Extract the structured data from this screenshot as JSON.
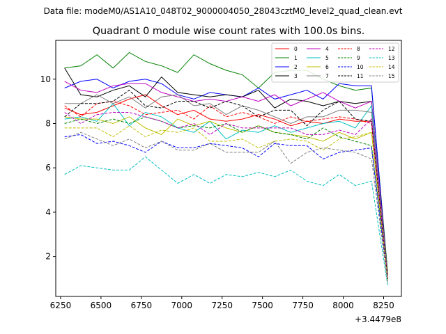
{
  "figure": {
    "suptitle": "Data file: modeM0/AS1A10_048T02_9000004050_28043cztM0_level2_quad_clean.evt",
    "title": "Quadrant 0 module wise count rates with 100.0s bins."
  },
  "chart_data": {
    "type": "line",
    "title": "Quadrant 0 module wise count rates with 100.0s bins.",
    "xlabel": "",
    "ylabel": "",
    "x_offset_label": "+3.4479e8",
    "xlim": [
      6220,
      8360
    ],
    "ylim": [
      0.2,
      11.75
    ],
    "x_ticks": [
      6250,
      6500,
      6750,
      7000,
      7250,
      7500,
      7750,
      8000,
      8250
    ],
    "y_ticks": [
      2,
      4,
      6,
      8,
      10
    ],
    "grid": false,
    "legend_placement": "top-right",
    "legend_columns": 4,
    "x": [
      6275,
      6375,
      6475,
      6575,
      6675,
      6775,
      6875,
      6975,
      7075,
      7175,
      7275,
      7375,
      7475,
      7575,
      7675,
      7775,
      7875,
      7975,
      8075,
      8175,
      8275
    ],
    "series": [
      {
        "name": "0",
        "color": "#ff0000",
        "dash": "solid",
        "values": [
          8.7,
          8.4,
          8.5,
          8.8,
          9.1,
          9.3,
          8.8,
          8.4,
          8.6,
          8.2,
          8.1,
          8.2,
          8.4,
          8.2,
          7.9,
          8.1,
          8.0,
          8.2,
          8.1,
          8.1,
          1.2
        ]
      },
      {
        "name": "1",
        "color": "#008000",
        "dash": "solid",
        "values": [
          10.5,
          10.6,
          11.1,
          10.5,
          11.2,
          10.8,
          10.6,
          10.3,
          11.1,
          10.7,
          10.4,
          10.2,
          9.6,
          10.3,
          10.4,
          10.4,
          10.0,
          9.7,
          9.5,
          9.6,
          1.3
        ]
      },
      {
        "name": "2",
        "color": "#0000ff",
        "dash": "solid",
        "values": [
          9.6,
          9.9,
          10.0,
          9.6,
          9.9,
          10.0,
          9.8,
          9.3,
          9.1,
          9.4,
          9.3,
          9.2,
          9.6,
          9.1,
          9.3,
          9.5,
          9.1,
          9.8,
          9.7,
          9.7,
          1.1
        ]
      },
      {
        "name": "3",
        "color": "#000000",
        "dash": "solid",
        "values": [
          10.5,
          9.3,
          9.2,
          9.5,
          9.7,
          9.2,
          10.1,
          9.4,
          9.3,
          9.2,
          9.3,
          9.2,
          9.5,
          8.7,
          9.1,
          9.0,
          8.8,
          9.0,
          8.9,
          9.0,
          1.2
        ]
      },
      {
        "name": "4",
        "color": "#bf00bf",
        "dash": "solid",
        "values": [
          9.9,
          9.5,
          9.4,
          9.7,
          9.8,
          9.8,
          9.4,
          9.2,
          9.0,
          9.1,
          9.0,
          9.2,
          9.0,
          9.3,
          8.8,
          9.1,
          9.4,
          9.0,
          8.7,
          9.0,
          1.1
        ]
      },
      {
        "name": "5",
        "color": "#00bfbf",
        "dash": "solid",
        "values": [
          8.2,
          8.3,
          8.1,
          8.9,
          7.9,
          8.5,
          8.3,
          7.8,
          7.6,
          8.1,
          7.3,
          7.7,
          7.6,
          7.9,
          7.6,
          7.8,
          8.0,
          8.1,
          7.8,
          8.8,
          0.9
        ]
      },
      {
        "name": "6",
        "color": "#bfbf00",
        "dash": "solid",
        "values": [
          8.3,
          8.2,
          8.2,
          8.0,
          8.3,
          7.8,
          7.5,
          8.2,
          7.9,
          8.1,
          7.8,
          7.6,
          7.9,
          7.6,
          7.5,
          7.4,
          7.2,
          7.6,
          7.3,
          7.6,
          1.0
        ]
      },
      {
        "name": "7",
        "color": "#808080",
        "dash": "solid",
        "values": [
          8.9,
          8.9,
          9.3,
          8.9,
          9.2,
          8.7,
          9.2,
          9.3,
          8.8,
          8.9,
          8.4,
          8.8,
          8.6,
          8.3,
          8.0,
          8.3,
          8.3,
          8.6,
          8.6,
          8.5,
          1.2
        ]
      },
      {
        "name": "8",
        "color": "#ff0000",
        "dash": "dashed",
        "values": [
          8.8,
          8.3,
          8.9,
          9.0,
          8.8,
          8.4,
          8.5,
          8.6,
          8.2,
          8.8,
          8.3,
          8.5,
          8.3,
          8.0,
          8.3,
          8.1,
          8.2,
          8.3,
          8.2,
          8.0,
          1.0
        ]
      },
      {
        "name": "9",
        "color": "#008000",
        "dash": "dashed",
        "values": [
          8.0,
          8.2,
          8.0,
          8.2,
          8.0,
          8.3,
          8.1,
          7.8,
          7.9,
          7.8,
          8.0,
          7.6,
          7.9,
          7.6,
          7.5,
          7.3,
          7.8,
          7.4,
          7.2,
          7.0,
          1.0
        ]
      },
      {
        "name": "10",
        "color": "#0000ff",
        "dash": "dashed",
        "values": [
          7.4,
          7.5,
          7.1,
          7.2,
          7.0,
          6.7,
          7.2,
          6.9,
          6.9,
          7.1,
          7.0,
          6.9,
          6.5,
          7.1,
          7.0,
          7.0,
          6.4,
          6.7,
          6.8,
          6.9,
          0.9
        ]
      },
      {
        "name": "11",
        "color": "#000000",
        "dash": "dashed",
        "values": [
          8.3,
          8.9,
          8.9,
          9.0,
          9.5,
          8.8,
          8.7,
          9.0,
          9.0,
          8.7,
          9.0,
          8.8,
          8.3,
          8.6,
          8.6,
          7.9,
          8.6,
          9.0,
          8.2,
          8.1,
          1.0
        ]
      },
      {
        "name": "12",
        "color": "#bf00bf",
        "dash": "dashed",
        "values": [
          8.5,
          8.0,
          8.4,
          8.5,
          8.5,
          8.3,
          8.1,
          7.8,
          8.0,
          7.5,
          8.0,
          7.8,
          7.8,
          7.8,
          7.8,
          7.5,
          7.5,
          7.7,
          7.5,
          8.2,
          1.0
        ]
      },
      {
        "name": "13",
        "color": "#00bfbf",
        "dash": "dashed",
        "values": [
          5.7,
          6.1,
          6.0,
          5.9,
          5.9,
          6.5,
          5.9,
          5.3,
          5.7,
          5.3,
          5.7,
          5.6,
          5.8,
          5.6,
          5.9,
          5.4,
          5.2,
          5.7,
          5.2,
          5.4,
          0.7
        ]
      },
      {
        "name": "14",
        "color": "#bfbf00",
        "dash": "dashed",
        "values": [
          7.8,
          7.8,
          7.8,
          7.4,
          7.9,
          7.4,
          7.7,
          7.6,
          7.8,
          7.2,
          7.2,
          7.3,
          6.9,
          7.2,
          7.3,
          7.2,
          6.8,
          7.3,
          7.4,
          7.6,
          0.9
        ]
      },
      {
        "name": "15",
        "color": "#808080",
        "dash": "dashed",
        "values": [
          7.3,
          7.6,
          7.3,
          7.0,
          7.3,
          6.9,
          7.2,
          6.8,
          6.8,
          7.1,
          6.7,
          6.7,
          6.7,
          7.2,
          6.2,
          6.7,
          6.9,
          6.8,
          6.7,
          6.4,
          0.8
        ]
      }
    ]
  }
}
